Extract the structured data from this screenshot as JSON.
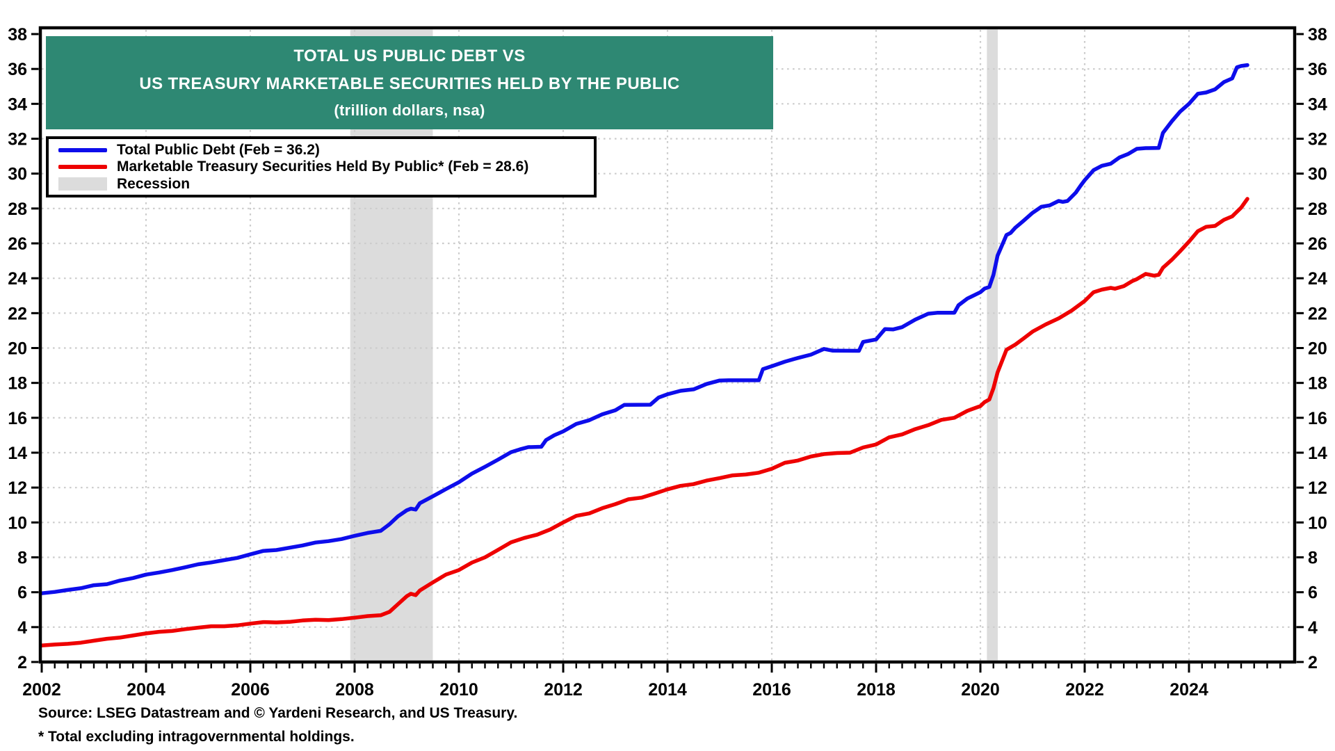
{
  "title": {
    "line1": "TOTAL US PUBLIC DEBT VS",
    "line2": "US TREASURY MARKETABLE SECURITIES HELD BY THE PUBLIC",
    "line3": "(trillion dollars, nsa)"
  },
  "legend": {
    "debt": "Total Public Debt (Feb = 36.2)",
    "marketable": "Marketable Treasury Securities Held By Public* (Feb = 28.6)",
    "recession": "Recession"
  },
  "footer": {
    "source": "Source: LSEG Datastream and © Yardeni Research, and US Treasury.",
    "footnote": "* Total excluding intragovernmental holdings."
  },
  "colors": {
    "debt": "#0d0deb",
    "marketable": "#ee0000",
    "recession": "#dcdcdc",
    "banner": "#2e8873",
    "grid": "#cccccc",
    "axis": "#000000"
  },
  "chart_data": {
    "type": "line",
    "title": "Total US Public Debt vs US Treasury Marketable Securities Held By The Public (trillion dollars, nsa)",
    "x_axis": {
      "min": 2002,
      "max": 2026,
      "major_tick": 2,
      "minor_tick": 0.25,
      "tick_labels": [
        2002,
        2004,
        2006,
        2008,
        2010,
        2012,
        2014,
        2016,
        2018,
        2020,
        2022,
        2024
      ]
    },
    "y_axis": {
      "min": 2,
      "max": 38,
      "tick": 2,
      "sides": "both",
      "tick_labels": [
        2,
        4,
        6,
        8,
        10,
        12,
        14,
        16,
        18,
        20,
        22,
        24,
        26,
        28,
        30,
        32,
        34,
        36,
        38
      ]
    },
    "grid": "dotted",
    "legend_position": "top-left",
    "recessions": [
      [
        2007.917,
        2009.5
      ],
      [
        2020.125,
        2020.333
      ]
    ],
    "series": [
      {
        "name": "Total Public Debt",
        "latest_label": "Feb = 36.2",
        "color": "debt",
        "points": [
          [
            2002.0,
            5.94
          ],
          [
            2002.25,
            6.02
          ],
          [
            2002.5,
            6.13
          ],
          [
            2002.75,
            6.23
          ],
          [
            2003.0,
            6.4
          ],
          [
            2003.25,
            6.46
          ],
          [
            2003.5,
            6.67
          ],
          [
            2003.75,
            6.81
          ],
          [
            2004.0,
            7.01
          ],
          [
            2004.25,
            7.13
          ],
          [
            2004.5,
            7.27
          ],
          [
            2004.75,
            7.43
          ],
          [
            2005.0,
            7.6
          ],
          [
            2005.25,
            7.71
          ],
          [
            2005.5,
            7.84
          ],
          [
            2005.75,
            7.97
          ],
          [
            2006.0,
            8.17
          ],
          [
            2006.25,
            8.37
          ],
          [
            2006.5,
            8.42
          ],
          [
            2006.75,
            8.55
          ],
          [
            2007.0,
            8.68
          ],
          [
            2007.25,
            8.85
          ],
          [
            2007.5,
            8.93
          ],
          [
            2007.75,
            9.05
          ],
          [
            2008.0,
            9.23
          ],
          [
            2008.25,
            9.4
          ],
          [
            2008.5,
            9.52
          ],
          [
            2008.67,
            9.9
          ],
          [
            2008.83,
            10.35
          ],
          [
            2009.0,
            10.7
          ],
          [
            2009.08,
            10.79
          ],
          [
            2009.17,
            10.74
          ],
          [
            2009.25,
            11.1
          ],
          [
            2009.5,
            11.5
          ],
          [
            2009.75,
            11.91
          ],
          [
            2010.0,
            12.31
          ],
          [
            2010.25,
            12.8
          ],
          [
            2010.5,
            13.19
          ],
          [
            2010.75,
            13.6
          ],
          [
            2011.0,
            14.03
          ],
          [
            2011.17,
            14.19
          ],
          [
            2011.33,
            14.32
          ],
          [
            2011.58,
            14.34
          ],
          [
            2011.67,
            14.72
          ],
          [
            2011.83,
            15.0
          ],
          [
            2012.0,
            15.22
          ],
          [
            2012.25,
            15.65
          ],
          [
            2012.5,
            15.86
          ],
          [
            2012.75,
            16.2
          ],
          [
            2013.0,
            16.43
          ],
          [
            2013.17,
            16.74
          ],
          [
            2013.67,
            16.75
          ],
          [
            2013.83,
            17.16
          ],
          [
            2014.0,
            17.35
          ],
          [
            2014.25,
            17.55
          ],
          [
            2014.5,
            17.63
          ],
          [
            2014.75,
            17.94
          ],
          [
            2015.0,
            18.14
          ],
          [
            2015.17,
            18.15
          ],
          [
            2015.75,
            18.15
          ],
          [
            2015.83,
            18.79
          ],
          [
            2016.0,
            18.96
          ],
          [
            2016.25,
            19.22
          ],
          [
            2016.5,
            19.43
          ],
          [
            2016.75,
            19.62
          ],
          [
            2017.0,
            19.95
          ],
          [
            2017.17,
            19.85
          ],
          [
            2017.67,
            19.84
          ],
          [
            2017.75,
            20.35
          ],
          [
            2018.0,
            20.49
          ],
          [
            2018.17,
            21.09
          ],
          [
            2018.33,
            21.07
          ],
          [
            2018.5,
            21.2
          ],
          [
            2018.75,
            21.63
          ],
          [
            2019.0,
            21.97
          ],
          [
            2019.17,
            22.02
          ],
          [
            2019.5,
            22.02
          ],
          [
            2019.58,
            22.45
          ],
          [
            2019.75,
            22.84
          ],
          [
            2020.0,
            23.2
          ],
          [
            2020.08,
            23.41
          ],
          [
            2020.17,
            23.5
          ],
          [
            2020.25,
            24.2
          ],
          [
            2020.33,
            25.3
          ],
          [
            2020.5,
            26.48
          ],
          [
            2020.58,
            26.6
          ],
          [
            2020.67,
            26.9
          ],
          [
            2020.75,
            27.1
          ],
          [
            2020.83,
            27.3
          ],
          [
            2021.0,
            27.75
          ],
          [
            2021.17,
            28.1
          ],
          [
            2021.33,
            28.18
          ],
          [
            2021.5,
            28.43
          ],
          [
            2021.58,
            28.38
          ],
          [
            2021.67,
            28.43
          ],
          [
            2021.83,
            28.91
          ],
          [
            2021.92,
            29.3
          ],
          [
            2022.0,
            29.62
          ],
          [
            2022.17,
            30.2
          ],
          [
            2022.33,
            30.45
          ],
          [
            2022.5,
            30.57
          ],
          [
            2022.67,
            30.93
          ],
          [
            2022.83,
            31.12
          ],
          [
            2023.0,
            31.42
          ],
          [
            2023.17,
            31.46
          ],
          [
            2023.42,
            31.47
          ],
          [
            2023.5,
            32.33
          ],
          [
            2023.67,
            33.0
          ],
          [
            2023.83,
            33.55
          ],
          [
            2024.0,
            34.0
          ],
          [
            2024.17,
            34.58
          ],
          [
            2024.33,
            34.65
          ],
          [
            2024.5,
            34.83
          ],
          [
            2024.67,
            35.25
          ],
          [
            2024.83,
            35.46
          ],
          [
            2024.92,
            36.1
          ],
          [
            2025.0,
            36.17
          ],
          [
            2025.12,
            36.22
          ]
        ]
      },
      {
        "name": "Marketable Treasury Securities Held By Public",
        "latest_label": "Feb = 28.6",
        "color": "marketable",
        "points": [
          [
            2002.0,
            2.95
          ],
          [
            2002.25,
            3.0
          ],
          [
            2002.5,
            3.04
          ],
          [
            2002.75,
            3.11
          ],
          [
            2003.0,
            3.22
          ],
          [
            2003.25,
            3.33
          ],
          [
            2003.5,
            3.4
          ],
          [
            2003.75,
            3.52
          ],
          [
            2004.0,
            3.64
          ],
          [
            2004.25,
            3.73
          ],
          [
            2004.5,
            3.78
          ],
          [
            2004.75,
            3.88
          ],
          [
            2005.0,
            3.97
          ],
          [
            2005.25,
            4.05
          ],
          [
            2005.5,
            4.05
          ],
          [
            2005.75,
            4.1
          ],
          [
            2006.0,
            4.2
          ],
          [
            2006.25,
            4.29
          ],
          [
            2006.5,
            4.27
          ],
          [
            2006.75,
            4.3
          ],
          [
            2007.0,
            4.38
          ],
          [
            2007.25,
            4.42
          ],
          [
            2007.5,
            4.4
          ],
          [
            2007.75,
            4.46
          ],
          [
            2008.0,
            4.54
          ],
          [
            2008.25,
            4.63
          ],
          [
            2008.5,
            4.68
          ],
          [
            2008.67,
            4.88
          ],
          [
            2008.83,
            5.31
          ],
          [
            2009.0,
            5.77
          ],
          [
            2009.08,
            5.91
          ],
          [
            2009.17,
            5.83
          ],
          [
            2009.25,
            6.1
          ],
          [
            2009.5,
            6.56
          ],
          [
            2009.75,
            7.01
          ],
          [
            2010.0,
            7.27
          ],
          [
            2010.25,
            7.7
          ],
          [
            2010.5,
            8.0
          ],
          [
            2010.75,
            8.43
          ],
          [
            2011.0,
            8.86
          ],
          [
            2011.25,
            9.11
          ],
          [
            2011.5,
            9.3
          ],
          [
            2011.75,
            9.6
          ],
          [
            2012.0,
            10.0
          ],
          [
            2012.25,
            10.38
          ],
          [
            2012.5,
            10.52
          ],
          [
            2012.75,
            10.82
          ],
          [
            2013.0,
            11.05
          ],
          [
            2013.25,
            11.33
          ],
          [
            2013.5,
            11.42
          ],
          [
            2013.75,
            11.65
          ],
          [
            2014.0,
            11.9
          ],
          [
            2014.25,
            12.1
          ],
          [
            2014.5,
            12.2
          ],
          [
            2014.75,
            12.4
          ],
          [
            2015.0,
            12.54
          ],
          [
            2015.25,
            12.7
          ],
          [
            2015.5,
            12.75
          ],
          [
            2015.75,
            12.85
          ],
          [
            2016.0,
            13.08
          ],
          [
            2016.25,
            13.42
          ],
          [
            2016.5,
            13.55
          ],
          [
            2016.75,
            13.78
          ],
          [
            2017.0,
            13.92
          ],
          [
            2017.25,
            13.98
          ],
          [
            2017.5,
            14.0
          ],
          [
            2017.75,
            14.3
          ],
          [
            2018.0,
            14.47
          ],
          [
            2018.25,
            14.88
          ],
          [
            2018.5,
            15.05
          ],
          [
            2018.75,
            15.35
          ],
          [
            2019.0,
            15.58
          ],
          [
            2019.25,
            15.88
          ],
          [
            2019.5,
            16.0
          ],
          [
            2019.75,
            16.4
          ],
          [
            2020.0,
            16.67
          ],
          [
            2020.08,
            16.9
          ],
          [
            2020.17,
            17.05
          ],
          [
            2020.25,
            17.7
          ],
          [
            2020.33,
            18.6
          ],
          [
            2020.5,
            19.9
          ],
          [
            2020.67,
            20.2
          ],
          [
            2020.83,
            20.55
          ],
          [
            2021.0,
            20.94
          ],
          [
            2021.25,
            21.35
          ],
          [
            2021.5,
            21.7
          ],
          [
            2021.75,
            22.15
          ],
          [
            2022.0,
            22.7
          ],
          [
            2022.17,
            23.2
          ],
          [
            2022.33,
            23.35
          ],
          [
            2022.5,
            23.45
          ],
          [
            2022.58,
            23.4
          ],
          [
            2022.75,
            23.55
          ],
          [
            2022.92,
            23.85
          ],
          [
            2023.0,
            23.95
          ],
          [
            2023.17,
            24.25
          ],
          [
            2023.33,
            24.15
          ],
          [
            2023.42,
            24.2
          ],
          [
            2023.5,
            24.6
          ],
          [
            2023.67,
            25.06
          ],
          [
            2023.83,
            25.55
          ],
          [
            2024.0,
            26.1
          ],
          [
            2024.17,
            26.7
          ],
          [
            2024.33,
            26.95
          ],
          [
            2024.5,
            27.0
          ],
          [
            2024.67,
            27.35
          ],
          [
            2024.83,
            27.55
          ],
          [
            2025.0,
            28.05
          ],
          [
            2025.12,
            28.55
          ]
        ]
      }
    ]
  }
}
